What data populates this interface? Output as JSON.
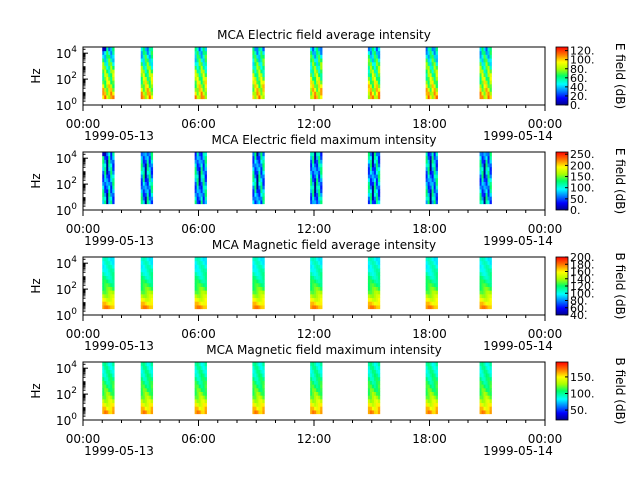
{
  "chart_data": [
    {
      "type": "heatmap",
      "title": "MCA  Electric field average intensity",
      "ylabel": "Hz",
      "colorbar_label": "E field (dB)",
      "colorbar_ticks": [
        "120.",
        "100.",
        "80.",
        "60.",
        "40.",
        "20.",
        "0."
      ],
      "colorbar_range": [
        0,
        128
      ],
      "yscale": "log",
      "ylim": [
        1,
        30000
      ],
      "y_ticks": [
        {
          "base": "10",
          "exp": "0"
        },
        {
          "base": "10",
          "exp": "2"
        },
        {
          "base": "10",
          "exp": "4"
        }
      ],
      "x_ticks": [
        "00:00",
        "06:00",
        "12:00",
        "18:00",
        "00:00"
      ],
      "x_dates": [
        "1999-05-13",
        "1999-05-14"
      ],
      "data_start_hours": [
        1.0,
        3.0,
        5.8,
        8.8,
        11.8,
        14.8,
        17.8,
        20.6
      ]
    },
    {
      "type": "heatmap",
      "title": "MCA  Electric field maximum intensity",
      "ylabel": "Hz",
      "colorbar_label": "E field (dB)",
      "colorbar_ticks": [
        "250.",
        "200.",
        "150.",
        "100.",
        "50.",
        "0."
      ],
      "colorbar_range": [
        0,
        260
      ],
      "yscale": "log",
      "ylim": [
        1,
        30000
      ],
      "y_ticks": [
        {
          "base": "10",
          "exp": "0"
        },
        {
          "base": "10",
          "exp": "2"
        },
        {
          "base": "10",
          "exp": "4"
        }
      ],
      "x_ticks": [
        "00:00",
        "06:00",
        "12:00",
        "18:00",
        "00:00"
      ],
      "x_dates": [
        "1999-05-13",
        "1999-05-14"
      ],
      "data_start_hours": [
        1.0,
        3.0,
        5.8,
        8.8,
        11.8,
        14.8,
        17.8,
        20.6
      ]
    },
    {
      "type": "heatmap",
      "title": "MCA  Magnetic field average intensity",
      "ylabel": "Hz",
      "colorbar_label": "B field (dB)",
      "colorbar_ticks": [
        "200.",
        "180.",
        "160.",
        "140.",
        "120.",
        "100.",
        "80.",
        "60.",
        "40."
      ],
      "colorbar_range": [
        40,
        200
      ],
      "yscale": "log",
      "ylim": [
        1,
        30000
      ],
      "y_ticks": [
        {
          "base": "10",
          "exp": "0"
        },
        {
          "base": "10",
          "exp": "2"
        },
        {
          "base": "10",
          "exp": "4"
        }
      ],
      "x_ticks": [
        "00:00",
        "06:00",
        "12:00",
        "18:00",
        "00:00"
      ],
      "x_dates": [
        "1999-05-13",
        "1999-05-14"
      ],
      "data_start_hours": [
        1.0,
        3.0,
        5.8,
        8.8,
        11.8,
        14.8,
        17.8,
        20.6
      ]
    },
    {
      "type": "heatmap",
      "title": "MCA  Magnetic field maximum intensity",
      "ylabel": "Hz",
      "colorbar_label": "B field (dB)",
      "colorbar_ticks": [
        "150.",
        "100.",
        "50."
      ],
      "colorbar_range": [
        20,
        195
      ],
      "yscale": "log",
      "ylim": [
        1,
        30000
      ],
      "y_ticks": [
        {
          "base": "10",
          "exp": "0"
        },
        {
          "base": "10",
          "exp": "2"
        },
        {
          "base": "10",
          "exp": "4"
        }
      ],
      "x_ticks": [
        "00:00",
        "06:00",
        "12:00",
        "18:00",
        "00:00"
      ],
      "x_dates": [
        "1999-05-13",
        "1999-05-14"
      ],
      "data_start_hours": [
        1.0,
        3.0,
        5.8,
        8.8,
        11.8,
        14.8,
        17.8,
        20.6
      ]
    }
  ]
}
